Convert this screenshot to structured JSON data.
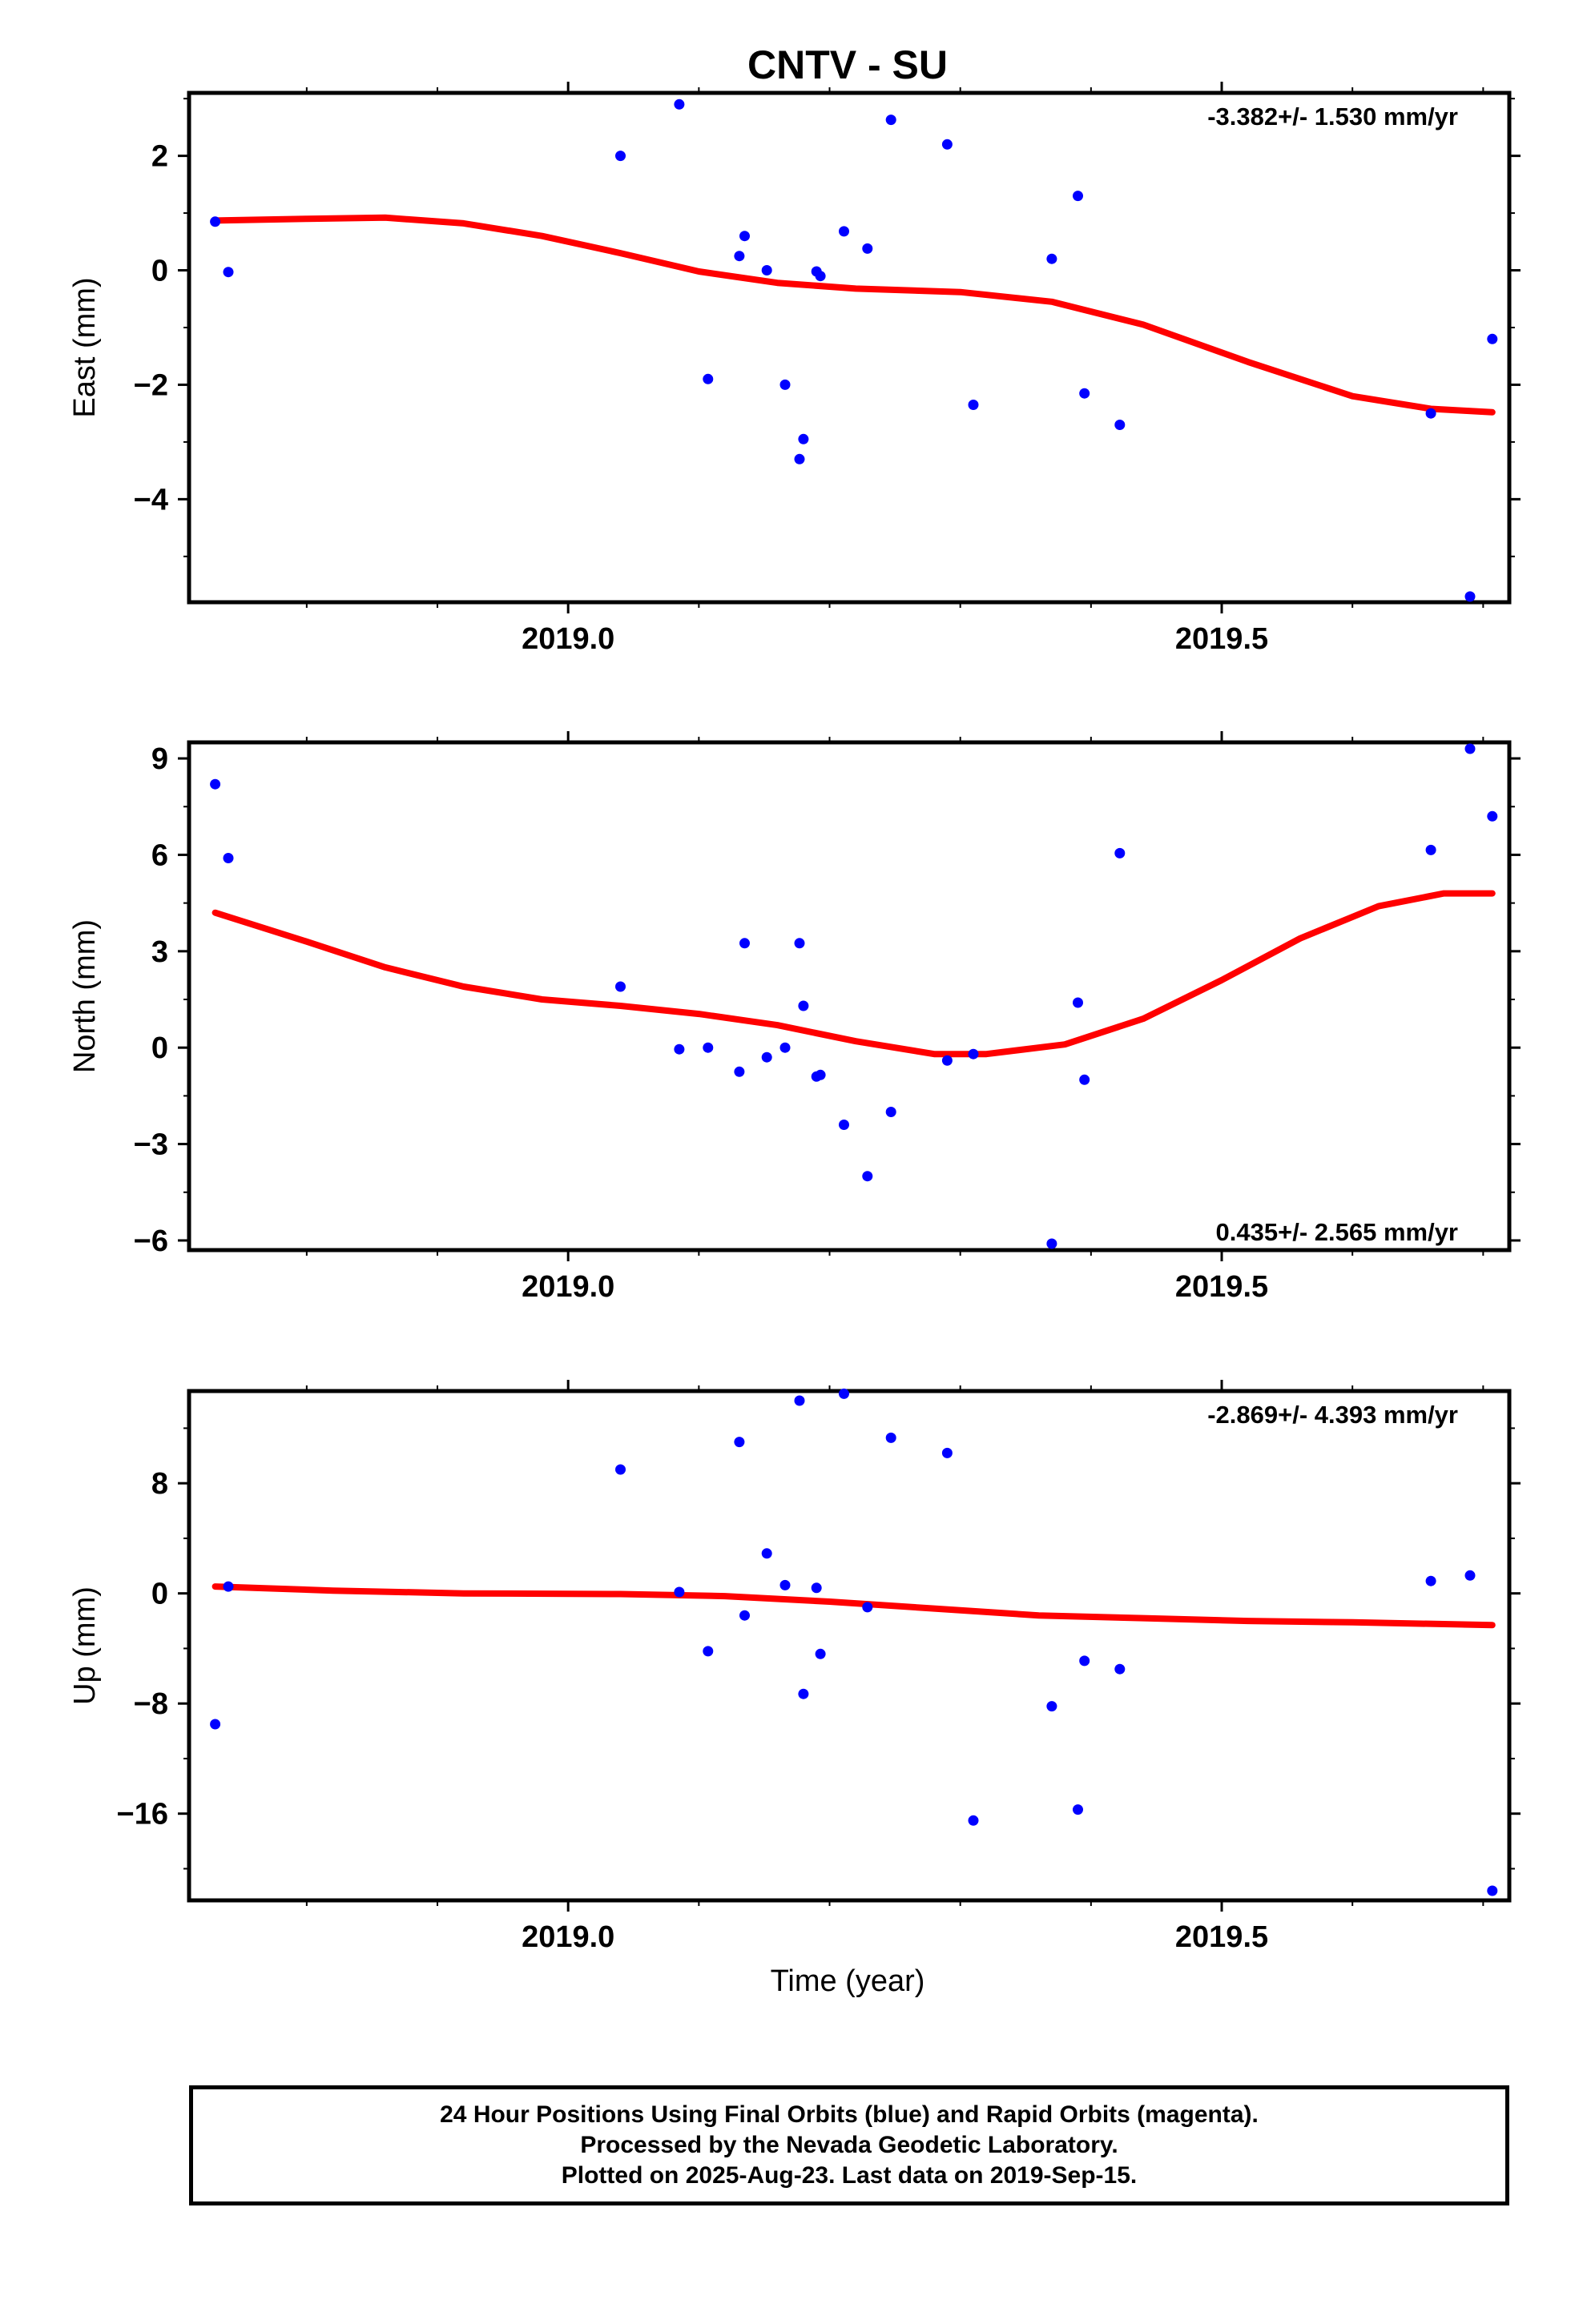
{
  "title": "CNTV - SU",
  "colors": {
    "final_orbit_points": "#0000ff",
    "trend_line": "#ff0000",
    "frame": "#000000"
  },
  "x_axis": {
    "label": "Time (year)",
    "range": [
      2018.71,
      2019.72
    ],
    "tick_labels": [
      "2019.0",
      "2019.5"
    ],
    "ticks": [
      2019.0,
      2019.5
    ],
    "minor_ticks": [
      2018.8,
      2018.9,
      2019.1,
      2019.2,
      2019.3,
      2019.4,
      2019.6,
      2019.7
    ]
  },
  "footer": {
    "line1": "24 Hour Positions Using Final Orbits (blue) and Rapid Orbits (magenta).",
    "line2": "Processed by the Nevada Geodetic Laboratory.",
    "line3": "Plotted on 2025-Aug-23. Last data on 2019-Sep-15."
  },
  "chart_data": [
    {
      "type": "scatter",
      "name": "East",
      "ylabel": "East (mm)",
      "ylim": [
        -5.8,
        3.1
      ],
      "yticks": [
        -4,
        -2,
        0,
        2
      ],
      "ytick_labels": [
        "−4",
        "−2",
        "0",
        "2"
      ],
      "yminor": [
        -5,
        -3,
        -1,
        1,
        3
      ],
      "rate_label": "-3.382+/- 1.530 mm/yr",
      "rate_position": "top-right",
      "x": [
        2018.73,
        2018.74,
        2019.04,
        2019.085,
        2019.107,
        2019.131,
        2019.135,
        2019.152,
        2019.166,
        2019.177,
        2019.18,
        2019.19,
        2019.193,
        2019.211,
        2019.229,
        2019.247,
        2019.29,
        2019.31,
        2019.37,
        2019.39,
        2019.395,
        2019.422,
        2019.66,
        2019.69,
        2019.707
      ],
      "y": [
        0.85,
        -0.03,
        2.0,
        2.9,
        -1.9,
        0.25,
        0.6,
        0.0,
        -2.0,
        -3.3,
        -2.95,
        -0.02,
        -0.1,
        0.68,
        0.38,
        2.63,
        2.2,
        -2.35,
        0.2,
        1.3,
        -2.15,
        -2.7,
        -2.5,
        -5.7,
        -1.2
      ],
      "trend": {
        "x": [
          2018.73,
          2018.8,
          2018.86,
          2018.92,
          2018.98,
          2019.04,
          2019.1,
          2019.16,
          2019.22,
          2019.3,
          2019.37,
          2019.44,
          2019.52,
          2019.6,
          2019.66,
          2019.707
        ],
        "y": [
          0.87,
          0.9,
          0.92,
          0.82,
          0.6,
          0.3,
          -0.02,
          -0.22,
          -0.32,
          -0.38,
          -0.55,
          -0.95,
          -1.6,
          -2.2,
          -2.42,
          -2.48
        ]
      }
    },
    {
      "type": "scatter",
      "name": "North",
      "ylabel": "North (mm)",
      "ylim": [
        -6.3,
        9.5
      ],
      "yticks": [
        -6,
        -3,
        0,
        3,
        6,
        9
      ],
      "ytick_labels": [
        "−6",
        "−3",
        "0",
        "3",
        "6",
        "9"
      ],
      "yminor": [
        -4.5,
        -1.5,
        1.5,
        4.5,
        7.5
      ],
      "rate_label": "0.435+/- 2.565 mm/yr",
      "rate_position": "bottom-right",
      "x": [
        2018.73,
        2018.74,
        2019.04,
        2019.085,
        2019.107,
        2019.131,
        2019.135,
        2019.152,
        2019.166,
        2019.177,
        2019.18,
        2019.19,
        2019.193,
        2019.211,
        2019.229,
        2019.247,
        2019.29,
        2019.31,
        2019.37,
        2019.39,
        2019.395,
        2019.422,
        2019.66,
        2019.69,
        2019.707
      ],
      "y": [
        8.2,
        5.9,
        1.9,
        -0.05,
        0.0,
        -0.75,
        3.25,
        -0.3,
        0.0,
        3.25,
        1.3,
        -0.9,
        -0.85,
        -2.4,
        -4.0,
        -2.0,
        -0.4,
        -0.2,
        -6.1,
        1.4,
        -1.0,
        6.05,
        6.15,
        9.3,
        7.2
      ],
      "trend": {
        "x": [
          2018.73,
          2018.8,
          2018.86,
          2018.92,
          2018.98,
          2019.04,
          2019.1,
          2019.16,
          2019.22,
          2019.28,
          2019.32,
          2019.38,
          2019.44,
          2019.5,
          2019.56,
          2019.62,
          2019.67,
          2019.707
        ],
        "y": [
          4.2,
          3.3,
          2.5,
          1.9,
          1.5,
          1.3,
          1.05,
          0.7,
          0.2,
          -0.2,
          -0.2,
          0.1,
          0.9,
          2.1,
          3.4,
          4.4,
          4.8,
          4.8
        ]
      }
    },
    {
      "type": "scatter",
      "name": "Up",
      "ylabel": "Up (mm)",
      "ylim": [
        -22.3,
        14.7
      ],
      "yticks": [
        -16,
        -8,
        0,
        8
      ],
      "ytick_labels": [
        "−16",
        "−8",
        "0",
        "8"
      ],
      "yminor": [
        -20,
        -12,
        -4,
        4,
        12
      ],
      "rate_label": "-2.869+/- 4.393 mm/yr",
      "rate_position": "top-right",
      "x": [
        2018.73,
        2018.74,
        2019.04,
        2019.085,
        2019.107,
        2019.131,
        2019.135,
        2019.152,
        2019.166,
        2019.177,
        2019.18,
        2019.19,
        2019.193,
        2019.211,
        2019.229,
        2019.247,
        2019.29,
        2019.31,
        2019.37,
        2019.39,
        2019.395,
        2019.422,
        2019.66,
        2019.69,
        2019.707
      ],
      "y": [
        -9.5,
        0.5,
        9.0,
        0.1,
        -4.2,
        11.0,
        -1.6,
        2.9,
        0.6,
        14.0,
        -7.3,
        0.4,
        -4.4,
        14.5,
        -1.0,
        11.3,
        10.2,
        -16.5,
        -8.2,
        -15.7,
        -4.9,
        -5.5,
        0.9,
        1.3,
        -21.6
      ],
      "trend": {
        "x": [
          2018.73,
          2018.82,
          2018.92,
          2019.04,
          2019.12,
          2019.2,
          2019.28,
          2019.36,
          2019.44,
          2019.52,
          2019.6,
          2019.707
        ],
        "y": [
          0.5,
          0.2,
          0.0,
          -0.05,
          -0.2,
          -0.6,
          -1.1,
          -1.6,
          -1.8,
          -2.0,
          -2.1,
          -2.3
        ]
      }
    }
  ]
}
